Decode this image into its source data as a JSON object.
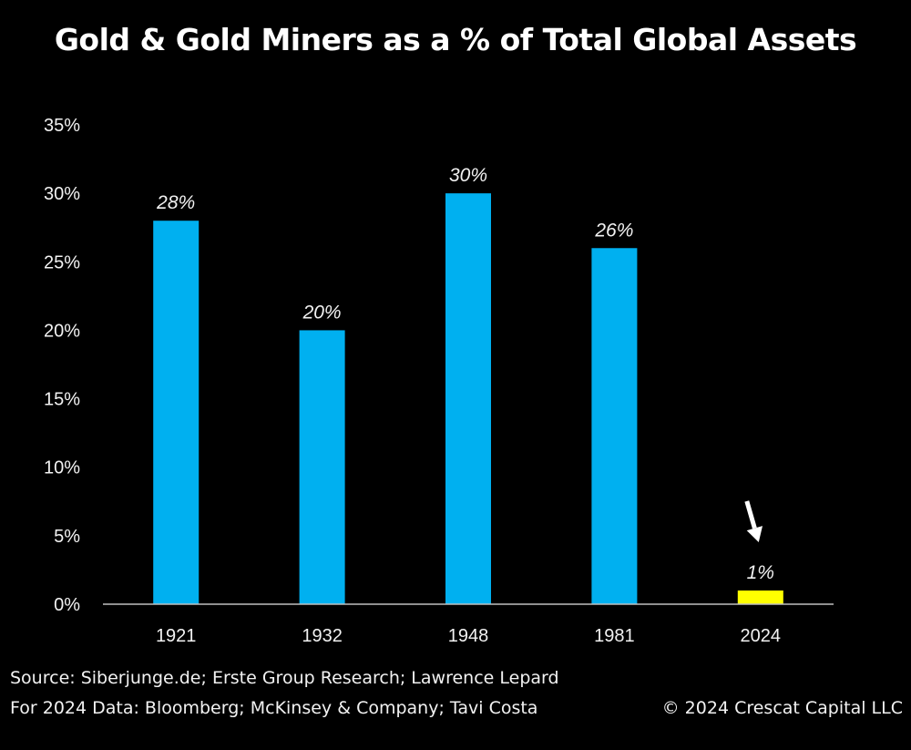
{
  "title": "Gold & Gold Miners as a % of Total Global Assets",
  "chart_data": {
    "type": "bar",
    "title": "Gold & Gold Miners as a % of Total Global Assets",
    "xlabel": "",
    "ylabel": "",
    "categories": [
      "1921",
      "1932",
      "1948",
      "1981",
      "2024"
    ],
    "values": [
      28,
      20,
      30,
      26,
      1
    ],
    "data_labels": [
      "28%",
      "20%",
      "30%",
      "26%",
      "1%"
    ],
    "colors": [
      "#00B0F0",
      "#00B0F0",
      "#00B0F0",
      "#00B0F0",
      "#FFFF00"
    ],
    "ylim": [
      0,
      35
    ],
    "yticks": [
      0,
      5,
      10,
      15,
      20,
      25,
      30,
      35
    ],
    "ytick_labels": [
      "0%",
      "5%",
      "10%",
      "15%",
      "20%",
      "25%",
      "30%",
      "35%"
    ],
    "grid": false,
    "legend": "none",
    "annotations": [
      {
        "type": "arrow",
        "target": "2024",
        "color": "#FFFFFF"
      }
    ]
  },
  "footer": {
    "source_line": "Source: Siberjunge.de; Erste Group Research; Lawrence Lepard",
    "data_line": "For 2024 Data: Bloomberg; McKinsey & Company; Tavi Costa",
    "copyright": "© 2024 Crescat Capital LLC"
  }
}
